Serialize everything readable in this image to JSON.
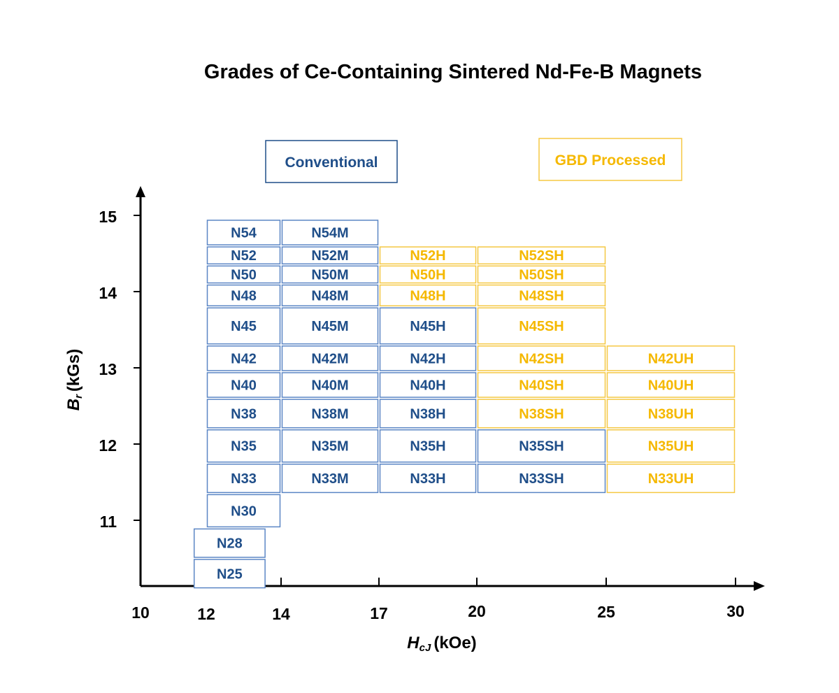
{
  "chart_data": {
    "type": "table",
    "title": "Grades of Ce-Containing Sintered Nd-Fe-B Magnets",
    "xlabel": {
      "main": "H",
      "sub": "cJ",
      "unit": "(kOe)"
    },
    "ylabel": {
      "main": "B",
      "sub": "r",
      "unit": "(kGs)"
    },
    "x_ticks": [
      10,
      12,
      14,
      17,
      20,
      25,
      30
    ],
    "y_ticks": [
      11,
      12,
      13,
      14,
      15
    ],
    "colors": {
      "conventional": "#1f4e89",
      "conventional_border": "#5b86c5",
      "gbd": "#f5b800",
      "gbd_border": "#f5c843"
    },
    "legend": [
      {
        "label": "Conventional",
        "group": "conventional"
      },
      {
        "label": "GBD Processed",
        "group": "gbd"
      }
    ],
    "grades": [
      {
        "label": "N54",
        "group": "conventional",
        "hcj": [
          12,
          14
        ],
        "br": [
          14.6,
          14.95
        ]
      },
      {
        "label": "N52",
        "group": "conventional",
        "hcj": [
          12,
          14
        ],
        "br": [
          14.35,
          14.6
        ]
      },
      {
        "label": "N50",
        "group": "conventional",
        "hcj": [
          12,
          14
        ],
        "br": [
          14.1,
          14.35
        ]
      },
      {
        "label": "N48",
        "group": "conventional",
        "hcj": [
          12,
          14
        ],
        "br": [
          13.8,
          14.1
        ]
      },
      {
        "label": "N45",
        "group": "conventional",
        "hcj": [
          12,
          14
        ],
        "br": [
          13.3,
          13.8
        ]
      },
      {
        "label": "N42",
        "group": "conventional",
        "hcj": [
          12,
          14
        ],
        "br": [
          12.95,
          13.3
        ]
      },
      {
        "label": "N40",
        "group": "conventional",
        "hcj": [
          12,
          14
        ],
        "br": [
          12.6,
          12.95
        ]
      },
      {
        "label": "N38",
        "group": "conventional",
        "hcj": [
          12,
          14
        ],
        "br": [
          12.2,
          12.6
        ]
      },
      {
        "label": "N35",
        "group": "conventional",
        "hcj": [
          12,
          14
        ],
        "br": [
          11.75,
          12.2
        ]
      },
      {
        "label": "N33",
        "group": "conventional",
        "hcj": [
          12,
          14
        ],
        "br": [
          11.35,
          11.75
        ]
      },
      {
        "label": "N30",
        "group": "conventional",
        "hcj": [
          12,
          14
        ],
        "br": [
          10.9,
          11.35
        ]
      },
      {
        "label": "N28",
        "group": "conventional",
        "hcj": [
          11.6,
          13.6
        ],
        "br": [
          10.5,
          10.9
        ]
      },
      {
        "label": "N25",
        "group": "conventional",
        "hcj": [
          11.6,
          13.6
        ],
        "br": [
          10.1,
          10.5
        ]
      },
      {
        "label": "N54M",
        "group": "conventional",
        "hcj": [
          14,
          17
        ],
        "br": [
          14.6,
          14.95
        ]
      },
      {
        "label": "N52M",
        "group": "conventional",
        "hcj": [
          14,
          17
        ],
        "br": [
          14.35,
          14.6
        ]
      },
      {
        "label": "N50M",
        "group": "conventional",
        "hcj": [
          14,
          17
        ],
        "br": [
          14.1,
          14.35
        ]
      },
      {
        "label": "N48M",
        "group": "conventional",
        "hcj": [
          14,
          17
        ],
        "br": [
          13.8,
          14.1
        ]
      },
      {
        "label": "N45M",
        "group": "conventional",
        "hcj": [
          14,
          17
        ],
        "br": [
          13.3,
          13.8
        ]
      },
      {
        "label": "N42M",
        "group": "conventional",
        "hcj": [
          14,
          17
        ],
        "br": [
          12.95,
          13.3
        ]
      },
      {
        "label": "N40M",
        "group": "conventional",
        "hcj": [
          14,
          17
        ],
        "br": [
          12.6,
          12.95
        ]
      },
      {
        "label": "N38M",
        "group": "conventional",
        "hcj": [
          14,
          17
        ],
        "br": [
          12.2,
          12.6
        ]
      },
      {
        "label": "N35M",
        "group": "conventional",
        "hcj": [
          14,
          17
        ],
        "br": [
          11.75,
          12.2
        ]
      },
      {
        "label": "N33M",
        "group": "conventional",
        "hcj": [
          14,
          17
        ],
        "br": [
          11.35,
          11.75
        ]
      },
      {
        "label": "N52H",
        "group": "gbd",
        "hcj": [
          17,
          20
        ],
        "br": [
          14.35,
          14.6
        ]
      },
      {
        "label": "N50H",
        "group": "gbd",
        "hcj": [
          17,
          20
        ],
        "br": [
          14.1,
          14.35
        ]
      },
      {
        "label": "N48H",
        "group": "gbd",
        "hcj": [
          17,
          20
        ],
        "br": [
          13.8,
          14.1
        ]
      },
      {
        "label": "N45H",
        "group": "conventional",
        "hcj": [
          17,
          20
        ],
        "br": [
          13.3,
          13.8
        ]
      },
      {
        "label": "N42H",
        "group": "conventional",
        "hcj": [
          17,
          20
        ],
        "br": [
          12.95,
          13.3
        ]
      },
      {
        "label": "N40H",
        "group": "conventional",
        "hcj": [
          17,
          20
        ],
        "br": [
          12.6,
          12.95
        ]
      },
      {
        "label": "N38H",
        "group": "conventional",
        "hcj": [
          17,
          20
        ],
        "br": [
          12.2,
          12.6
        ]
      },
      {
        "label": "N35H",
        "group": "conventional",
        "hcj": [
          17,
          20
        ],
        "br": [
          11.75,
          12.2
        ]
      },
      {
        "label": "N33H",
        "group": "conventional",
        "hcj": [
          17,
          20
        ],
        "br": [
          11.35,
          11.75
        ]
      },
      {
        "label": "N52SH",
        "group": "gbd",
        "hcj": [
          20,
          25
        ],
        "br": [
          14.35,
          14.6
        ]
      },
      {
        "label": "N50SH",
        "group": "gbd",
        "hcj": [
          20,
          25
        ],
        "br": [
          14.1,
          14.35
        ]
      },
      {
        "label": "N48SH",
        "group": "gbd",
        "hcj": [
          20,
          25
        ],
        "br": [
          13.8,
          14.1
        ]
      },
      {
        "label": "N45SH",
        "group": "gbd",
        "hcj": [
          20,
          25
        ],
        "br": [
          13.3,
          13.8
        ]
      },
      {
        "label": "N42SH",
        "group": "gbd",
        "hcj": [
          20,
          25
        ],
        "br": [
          12.95,
          13.3
        ]
      },
      {
        "label": "N40SH",
        "group": "gbd",
        "hcj": [
          20,
          25
        ],
        "br": [
          12.6,
          12.95
        ]
      },
      {
        "label": "N38SH",
        "group": "gbd",
        "hcj": [
          20,
          25
        ],
        "br": [
          12.2,
          12.6
        ]
      },
      {
        "label": "N35SH",
        "group": "conventional",
        "hcj": [
          20,
          25
        ],
        "br": [
          11.75,
          12.2
        ]
      },
      {
        "label": "N33SH",
        "group": "conventional",
        "hcj": [
          20,
          25
        ],
        "br": [
          11.35,
          11.75
        ]
      },
      {
        "label": "N42UH",
        "group": "gbd",
        "hcj": [
          25,
          30
        ],
        "br": [
          12.95,
          13.3
        ]
      },
      {
        "label": "N40UH",
        "group": "gbd",
        "hcj": [
          25,
          30
        ],
        "br": [
          12.6,
          12.95
        ]
      },
      {
        "label": "N38UH",
        "group": "gbd",
        "hcj": [
          25,
          30
        ],
        "br": [
          12.2,
          12.6
        ]
      },
      {
        "label": "N35UH",
        "group": "gbd",
        "hcj": [
          25,
          30
        ],
        "br": [
          11.75,
          12.2
        ]
      },
      {
        "label": "N33UH",
        "group": "gbd",
        "hcj": [
          25,
          30
        ],
        "br": [
          11.35,
          11.75
        ]
      }
    ]
  }
}
